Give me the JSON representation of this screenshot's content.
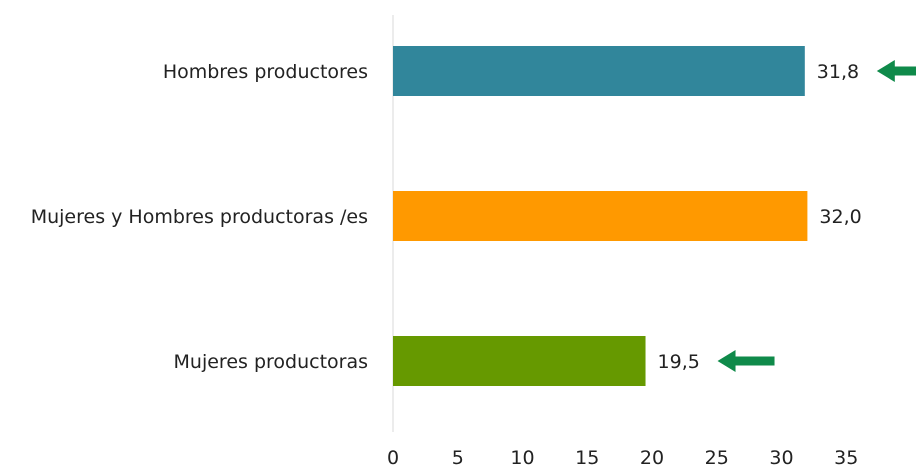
{
  "chart_data": {
    "type": "bar",
    "orientation": "horizontal",
    "categories": [
      "Hombres productores",
      "Mujeres y Hombres  productoras /es",
      "Mujeres productoras"
    ],
    "values": [
      31.8,
      32.0,
      19.5
    ],
    "value_labels": [
      "31,8",
      "32,0",
      "19,5"
    ],
    "bar_colors": [
      "#31869B",
      "#FF9900",
      "#669900"
    ],
    "arrow_color": "#0F8A4A",
    "arrows_on": [
      "Hombres productores",
      "Mujeres productoras"
    ],
    "arrow_icon": "left-arrow-icon",
    "xlim": [
      0,
      35
    ],
    "xticks": [
      0,
      5,
      10,
      15,
      20,
      25,
      30,
      35
    ],
    "grid": false,
    "title": "",
    "xlabel": "",
    "ylabel": ""
  }
}
